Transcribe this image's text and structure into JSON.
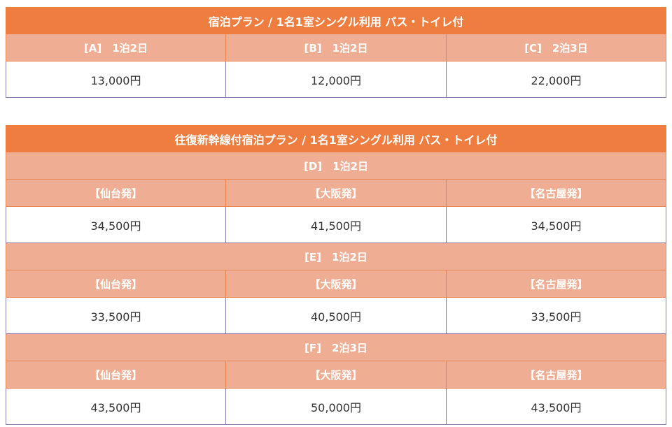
{
  "plan1": {
    "title": "宿泊プラン / 1名1室シングル利用 バス・トイレ付",
    "columns": [
      "[A]　1泊2日",
      "[B]　1泊2日",
      "[C]　2泊3日"
    ],
    "prices": [
      "13,000円",
      "12,000円",
      "22,000円"
    ]
  },
  "plan2": {
    "title": "往復新幹線付宿泊プラン / 1名1室シングル利用 バス・トイレ付",
    "cities": [
      "【仙台発】",
      "【大阪発】",
      "【名古屋発】"
    ],
    "sections": [
      {
        "label": "[D]　1泊2日",
        "prices": [
          "34,500円",
          "41,500円",
          "34,500円"
        ]
      },
      {
        "label": "[E]　1泊2日",
        "prices": [
          "33,500円",
          "40,500円",
          "33,500円"
        ]
      },
      {
        "label": "[F]　2泊3日",
        "prices": [
          "43,500円",
          "50,000円",
          "43,500円"
        ]
      }
    ]
  }
}
